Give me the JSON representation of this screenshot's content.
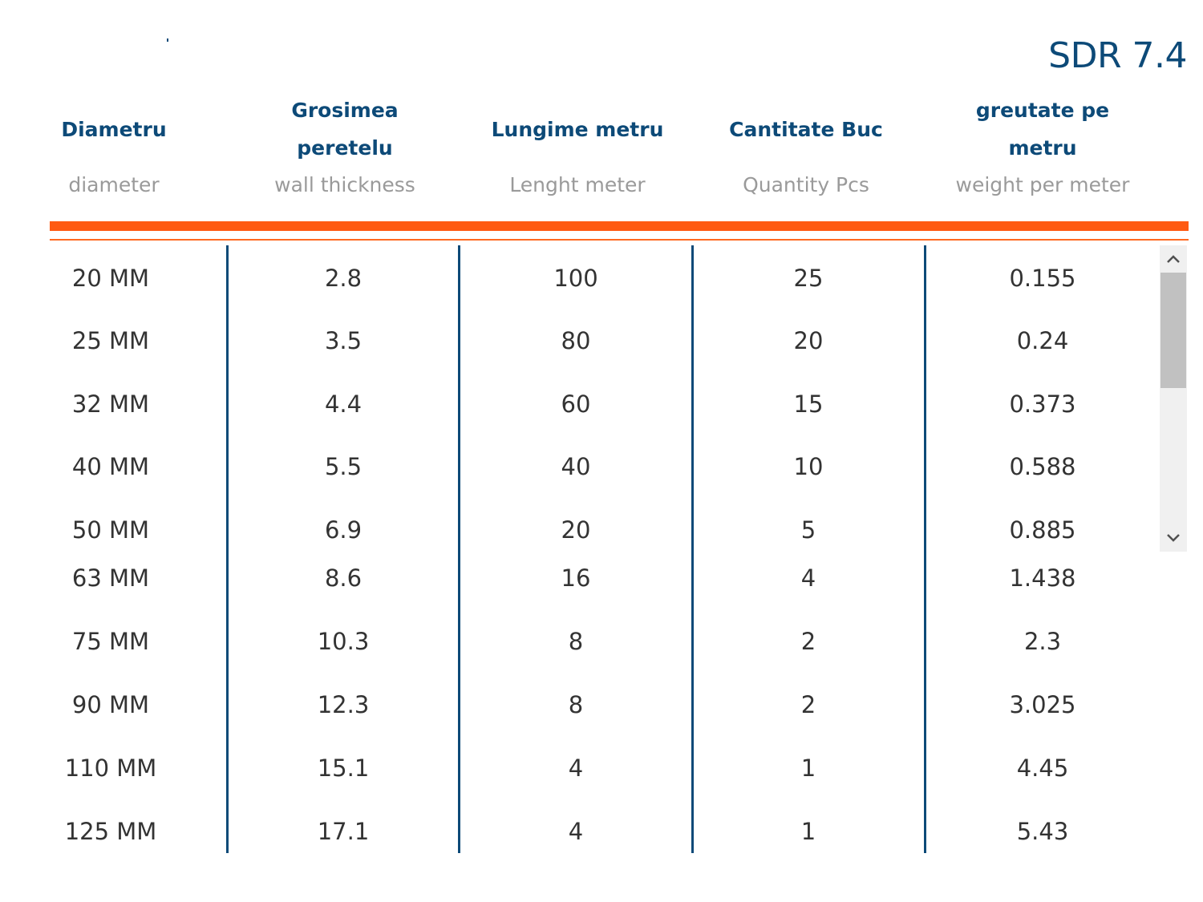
{
  "title": "SDR 7.4",
  "columns": [
    {
      "ro": "Diametru",
      "en": "diameter"
    },
    {
      "ro": "Grosimea peretelu",
      "en": "wall thickness"
    },
    {
      "ro": "Lungime metru",
      "en": "Lenght meter"
    },
    {
      "ro": "Cantitate Buc",
      "en": "Quantity Pcs"
    },
    {
      "ro": "greutate pe metru",
      "en": "weight per meter"
    }
  ],
  "rows": [
    [
      "20 MM",
      "2.8",
      "100",
      "25",
      "0.155"
    ],
    [
      "25 MM",
      "3.5",
      "80",
      "20",
      "0.24"
    ],
    [
      "32 MM",
      "4.4",
      "60",
      "15",
      "0.373"
    ],
    [
      "40 MM",
      "5.5",
      "40",
      "10",
      "0.588"
    ],
    [
      "50 MM",
      "6.9",
      "20",
      "5",
      "0.885"
    ],
    [
      "63 MM",
      "8.6",
      "16",
      "4",
      "1.438"
    ],
    [
      "75 MM",
      "10.3",
      "8",
      "2",
      "2.3"
    ],
    [
      "90 MM",
      "12.3",
      "8",
      "2",
      "3.025"
    ],
    [
      "110 MM",
      "15.1",
      "4",
      "1",
      "4.45"
    ],
    [
      "125 MM",
      "17.1",
      "4",
      "1",
      "5.43"
    ]
  ],
  "scrollbar": {
    "up_icon": "chevron-up-icon",
    "down_icon": "chevron-down-icon",
    "color": "#c1c1c1"
  },
  "colors": {
    "accent_blue": "#0d4a78",
    "accent_orange": "#ff5a12"
  }
}
